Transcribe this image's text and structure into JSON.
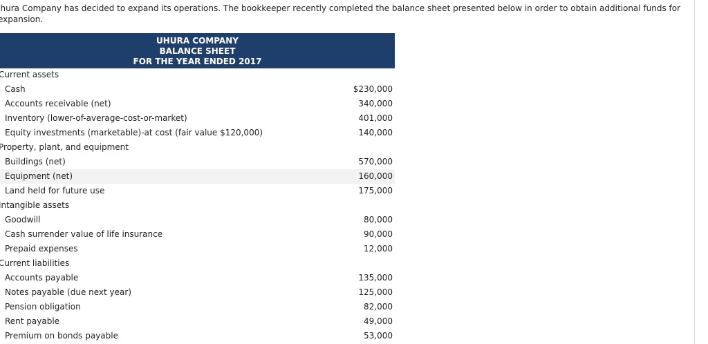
{
  "intro": "Jhura Company has decided to expand its operations. The bookkeeper recently completed the balance sheet presented below in order to obtain additional funds for expansion.",
  "header": {
    "company": "UHURA COMPANY",
    "statement": "BALANCE SHEET",
    "period": "FOR THE YEAR ENDED 2017"
  },
  "rows": [
    {
      "label": "Current assets",
      "amount": ""
    },
    {
      "label": "Cash",
      "amount": "$230,000"
    },
    {
      "label": "Accounts receivable (net)",
      "amount": "340,000"
    },
    {
      "label": "Inventory (lower-of-average-cost-or-market)",
      "amount": "401,000"
    },
    {
      "label": "Equity investments (marketable)-at cost (fair value $120,000)",
      "amount": "140,000"
    },
    {
      "label": "Property, plant, and equipment",
      "amount": ""
    },
    {
      "label": "Buildings (net)",
      "amount": "570,000"
    },
    {
      "label": "Equipment (net)",
      "amount": "160,000"
    },
    {
      "label": "Land held for future use",
      "amount": "175,000"
    },
    {
      "label": "Intangible assets",
      "amount": ""
    },
    {
      "label": "Goodwill",
      "amount": "80,000"
    },
    {
      "label": "Cash surrender value of life insurance",
      "amount": "90,000"
    },
    {
      "label": "Prepaid expenses",
      "amount": "12,000"
    },
    {
      "label": "Current liabilities",
      "amount": ""
    },
    {
      "label": "Accounts payable",
      "amount": "135,000"
    },
    {
      "label": "Notes payable (due next year)",
      "amount": "125,000"
    },
    {
      "label": "Pension obligation",
      "amount": "82,000"
    },
    {
      "label": "Rent payable",
      "amount": "49,000"
    },
    {
      "label": "Premium on bonds payable",
      "amount": "53,000"
    }
  ]
}
